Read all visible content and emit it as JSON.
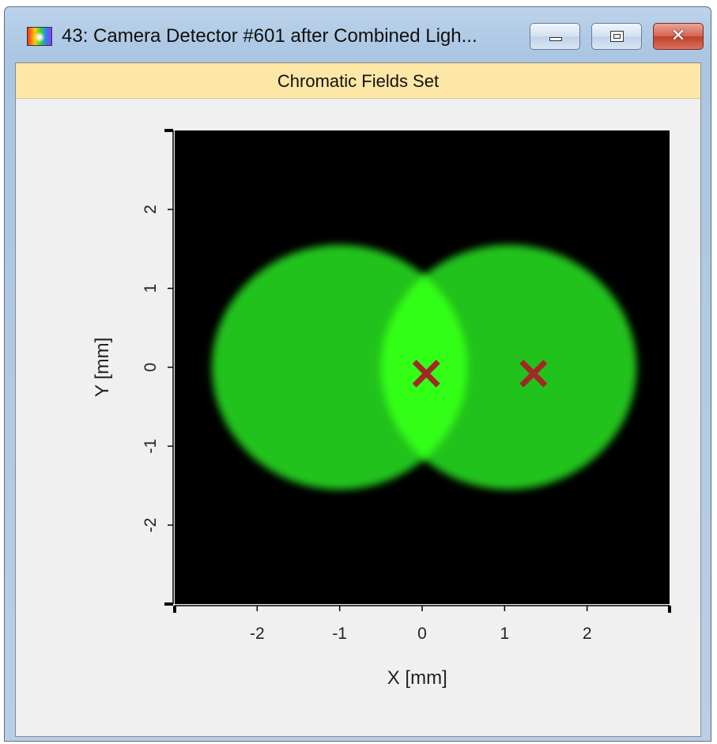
{
  "window": {
    "title": "43: Camera Detector #601 after Combined Ligh...",
    "icon": "rainbow-field-icon",
    "buttons": {
      "minimize": "minimize-icon",
      "maximize": "restore-icon",
      "close_glyph": "✕"
    }
  },
  "panel": {
    "header": "Chromatic Fields Set"
  },
  "colors": {
    "field": "#21c21b",
    "overlap": "#33ff14",
    "marker": "#a52626",
    "background": "#000000",
    "header_bg": "#fde7a6"
  },
  "chart_data": {
    "type": "heatmap",
    "title": "",
    "xlabel": "X [mm]",
    "ylabel": "Y [mm]",
    "xlim": [
      -3,
      3
    ],
    "ylim": [
      -3,
      3
    ],
    "x_ticks": [
      "-2",
      "-1",
      "0",
      "1",
      "2"
    ],
    "y_ticks": [
      "2",
      "1",
      "0",
      "-1",
      "-2"
    ],
    "x_tick_values": [
      -2,
      -1,
      0,
      1,
      2
    ],
    "y_tick_values": [
      2,
      1,
      0,
      -1,
      -2
    ],
    "fields": [
      {
        "center_x": -1.0,
        "center_y": 0.0,
        "radius": 1.55
      },
      {
        "center_x": 1.05,
        "center_y": 0.0,
        "radius": 1.55
      }
    ],
    "markers": [
      {
        "x": 0.05,
        "y": -0.08
      },
      {
        "x": 1.35,
        "y": -0.08
      }
    ]
  }
}
